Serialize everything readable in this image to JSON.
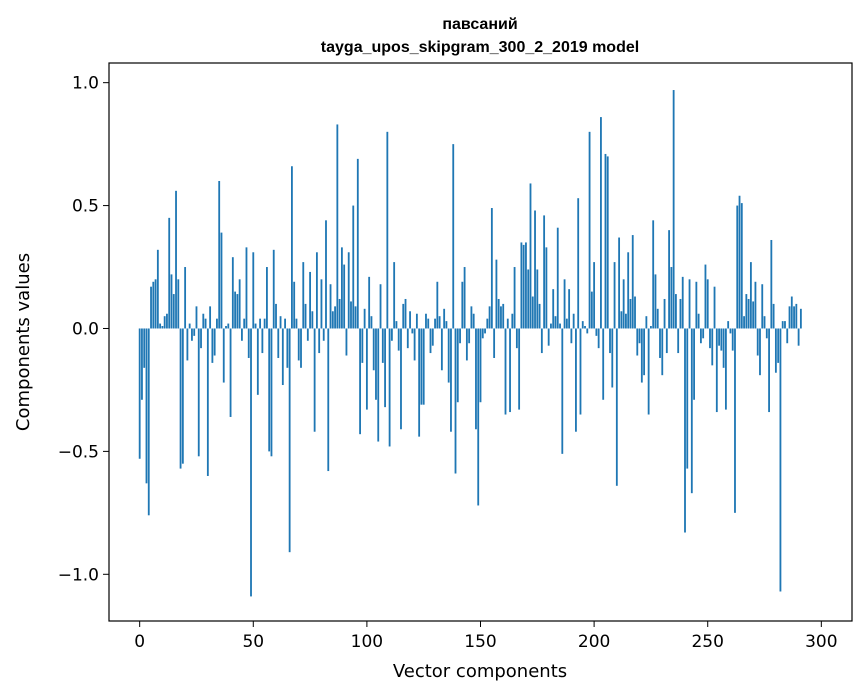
{
  "chart_data": {
    "type": "bar",
    "title": "павсаний",
    "subtitle": "tayga_upos_skipgram_300_2_2019 model",
    "xlabel": "Vector components",
    "ylabel": "Components values",
    "xlim": [
      -13.5,
      313.5
    ],
    "ylim": [
      -1.19,
      1.08
    ],
    "xticks": [
      0,
      50,
      100,
      150,
      200,
      250,
      300
    ],
    "yticks": [
      -1.0,
      -0.5,
      0.0,
      0.5,
      1.0
    ],
    "xtick_labels": [
      "0",
      "50",
      "100",
      "150",
      "200",
      "250",
      "300"
    ],
    "ytick_labels": [
      "−1.0",
      "−0.5",
      "0.0",
      "0.5",
      "1.0"
    ],
    "bar_color": "#1f77b4",
    "values": [
      -0.53,
      -0.29,
      -0.16,
      -0.63,
      -0.76,
      0.17,
      0.19,
      0.2,
      0.32,
      0.02,
      0.01,
      0.05,
      0.06,
      0.45,
      0.22,
      0.14,
      0.56,
      0.2,
      -0.57,
      -0.55,
      0.25,
      -0.13,
      0.02,
      -0.05,
      -0.03,
      0.09,
      -0.52,
      -0.08,
      0.06,
      0.04,
      -0.6,
      0.09,
      -0.14,
      -0.11,
      0.04,
      0.6,
      0.39,
      -0.22,
      0.01,
      0.02,
      -0.36,
      0.29,
      0.15,
      0.14,
      0.2,
      -0.05,
      0.04,
      0.33,
      -0.12,
      -1.09,
      0.31,
      0.02,
      -0.27,
      0.04,
      -0.1,
      0.04,
      0.25,
      -0.5,
      -0.52,
      0.32,
      0.1,
      -0.12,
      0.05,
      -0.23,
      0.04,
      -0.16,
      -0.91,
      0.66,
      0.19,
      0.04,
      -0.13,
      -0.16,
      0.27,
      0.1,
      -0.05,
      0.23,
      0.07,
      -0.42,
      0.31,
      -0.1,
      0.2,
      -0.05,
      0.44,
      -0.58,
      0.18,
      0.07,
      0.09,
      0.83,
      0.12,
      0.33,
      0.26,
      -0.11,
      0.31,
      0.11,
      0.5,
      0.09,
      0.69,
      -0.43,
      -0.14,
      0.08,
      -0.33,
      0.21,
      0.05,
      -0.17,
      -0.29,
      -0.46,
      0.18,
      -0.14,
      -0.32,
      0.8,
      -0.48,
      -0.05,
      0.27,
      0.03,
      -0.09,
      -0.41,
      0.1,
      0.12,
      -0.08,
      0.07,
      -0.02,
      -0.13,
      0.06,
      -0.44,
      -0.31,
      -0.31,
      0.06,
      0.04,
      -0.1,
      -0.07,
      0.04,
      0.19,
      0.05,
      -0.17,
      0.08,
      0.03,
      -0.22,
      -0.42,
      0.75,
      -0.59,
      -0.3,
      -0.06,
      0.19,
      0.25,
      -0.13,
      -0.06,
      0.09,
      0.06,
      -0.41,
      -0.72,
      -0.3,
      -0.04,
      -0.02,
      0.04,
      0.09,
      0.49,
      -0.12,
      0.28,
      0.12,
      0.09,
      0.1,
      -0.35,
      0.04,
      -0.34,
      0.06,
      0.25,
      -0.08,
      -0.33,
      0.35,
      0.34,
      0.35,
      0.24,
      0.59,
      0.13,
      0.48,
      0.24,
      0.1,
      -0.1,
      0.46,
      0.33,
      -0.07,
      0.02,
      0.16,
      0.05,
      0.41,
      0.02,
      -0.51,
      0.2,
      0.04,
      0.16,
      -0.06,
      0.06,
      -0.42,
      0.53,
      -0.35,
      0.03,
      0.01,
      -0.02,
      0.8,
      0.15,
      0.27,
      -0.03,
      -0.08,
      0.86,
      -0.29,
      0.71,
      0.7,
      -0.1,
      -0.24,
      0.27,
      -0.64,
      0.37,
      0.07,
      0.2,
      0.06,
      0.31,
      0.12,
      0.38,
      0.13,
      -0.11,
      -0.06,
      -0.22,
      -0.19,
      0.05,
      -0.35,
      0.01,
      0.44,
      0.22,
      0.08,
      -0.12,
      -0.19,
      0.12,
      -0.1,
      0.4,
      0.25,
      0.97,
      0.14,
      -0.1,
      0.12,
      0.21,
      -0.83,
      -0.57,
      0.2,
      -0.67,
      -0.29,
      0.19,
      0.06,
      -0.06,
      -0.04,
      0.26,
      0.2,
      -0.08,
      -0.15,
      0.17,
      -0.34,
      -0.07,
      -0.09,
      -0.16,
      -0.33,
      0.03,
      -0.02,
      -0.09,
      -0.75,
      0.5,
      0.54,
      0.51,
      0.05,
      0.14,
      0.12,
      0.27,
      0.11,
      0.19,
      -0.11,
      -0.19,
      0.18,
      0.05,
      -0.04,
      -0.34,
      0.36,
      0.1,
      -0.18,
      -0.14,
      -1.07,
      0.03,
      0.03,
      -0.06,
      0.09,
      0.13,
      0.09,
      0.1,
      -0.07,
      0.08
    ]
  }
}
